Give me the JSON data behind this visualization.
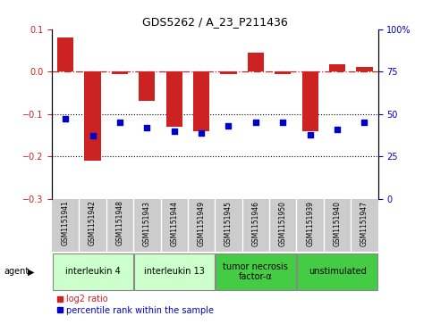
{
  "title": "GDS5262 / A_23_P211436",
  "samples": [
    "GSM1151941",
    "GSM1151942",
    "GSM1151948",
    "GSM1151943",
    "GSM1151944",
    "GSM1151949",
    "GSM1151945",
    "GSM1151946",
    "GSM1151950",
    "GSM1151939",
    "GSM1151940",
    "GSM1151947"
  ],
  "log2_ratio": [
    0.08,
    -0.21,
    -0.005,
    -0.07,
    -0.13,
    -0.14,
    -0.005,
    0.045,
    -0.005,
    -0.14,
    0.018,
    0.01
  ],
  "percentile_rank": [
    47,
    37,
    45,
    42,
    40,
    39,
    43,
    45,
    45,
    38,
    41,
    45
  ],
  "groups": [
    {
      "label": "interleukin 4",
      "start": 0,
      "end": 3,
      "color": "#ccffcc"
    },
    {
      "label": "interleukin 13",
      "start": 3,
      "end": 6,
      "color": "#ccffcc"
    },
    {
      "label": "tumor necrosis\nfactor-α",
      "start": 6,
      "end": 9,
      "color": "#44cc44"
    },
    {
      "label": "unstimulated",
      "start": 9,
      "end": 12,
      "color": "#44cc44"
    }
  ],
  "ylim_left": [
    -0.3,
    0.1
  ],
  "ylim_right": [
    0,
    100
  ],
  "yticks_left": [
    -0.3,
    -0.2,
    -0.1,
    0.0,
    0.1
  ],
  "yticks_right": [
    0,
    25,
    50,
    75,
    100
  ],
  "bar_color": "#cc2222",
  "scatter_color": "#0000cc",
  "bar_width": 0.6,
  "legend_items": [
    {
      "label": "log2 ratio",
      "color": "#cc2222"
    },
    {
      "label": "percentile rank within the sample",
      "color": "#0000cc"
    }
  ],
  "agent_label": "agent",
  "background_color": "#ffffff",
  "sample_bg_color": "#cccccc",
  "title_fontsize": 9,
  "tick_fontsize": 7,
  "sample_fontsize": 5.5,
  "group_fontsize": 7,
  "legend_fontsize": 7
}
